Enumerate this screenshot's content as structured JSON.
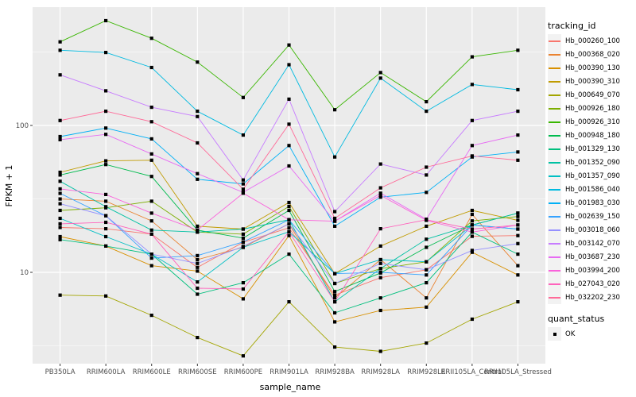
{
  "figure": {
    "xlabel": "sample_name",
    "ylabel": "FPKM + 1"
  },
  "legend": {
    "tracking_title": "tracking_id",
    "quant_title": "quant_status",
    "quant_items": [
      {
        "label": "OK"
      }
    ]
  },
  "colors": {
    "panel_bg": "#EBEBEB",
    "grid_major": "#FFFFFF",
    "grid_minor": "#FFFFFF",
    "tick_mark": "#333333",
    "tick_label": "#4D4D4D",
    "axis_title": "#000000",
    "legend_key_bg": "#F2F2F2",
    "point": "#000000"
  },
  "chart_data": {
    "type": "line",
    "title": "",
    "xlabel": "sample_name",
    "ylabel": "FPKM + 1",
    "yscale": "log10",
    "yticks": [
      10,
      100
    ],
    "ytick_labels": [
      "10",
      "100"
    ],
    "yminor": [
      3.162,
      31.62,
      316.2
    ],
    "ylim": [
      2.4,
      650
    ],
    "grid": true,
    "legend_position": "right",
    "legend_title": "tracking_id",
    "point_shape": "black square (quant_status = OK at every point)",
    "categories": [
      "PB350LA",
      "RRIM600LA",
      "RRIM600LE",
      "RRIM600SE",
      "RRIM600PE",
      "RRIM901LA",
      "RRIM928BA",
      "RRIM928LA",
      "RRIM928LE",
      "RRII105LA_Control",
      "RRII105LA_Stressed"
    ],
    "series": [
      {
        "name": "Hb_000260_100",
        "color": "#F8766D",
        "values": [
          20.2,
          19.8,
          18.2,
          10.8,
          16.0,
          20.1,
          7.0,
          9.2,
          10.4,
          17.6,
          17.8
        ]
      },
      {
        "name": "Hb_000368_020",
        "color": "#EA8331",
        "values": [
          31.6,
          30.5,
          22.4,
          12.2,
          14.8,
          21.4,
          6.7,
          12.2,
          6.7,
          24.8,
          11.1
        ]
      },
      {
        "name": "Hb_000390_130",
        "color": "#D89000",
        "values": [
          17.5,
          15.1,
          11.1,
          10.2,
          6.6,
          17.8,
          4.6,
          5.5,
          5.8,
          13.7,
          9.6
        ]
      },
      {
        "name": "Hb_000390_310",
        "color": "#C09B00",
        "values": [
          48,
          57.4,
          58,
          20.6,
          19.7,
          29.9,
          9.8,
          15.1,
          20.6,
          26.4,
          22.6
        ]
      },
      {
        "name": "Hb_000649_070",
        "color": "#A3A500",
        "values": [
          7.0,
          6.9,
          5.1,
          3.6,
          2.7,
          6.3,
          3.1,
          2.9,
          3.3,
          4.8,
          6.3
        ]
      },
      {
        "name": "Hb_000926_180",
        "color": "#7CAE00",
        "values": [
          26.4,
          27.5,
          30.5,
          18.8,
          18.2,
          28.1,
          8.4,
          10.6,
          11.8,
          22.4,
          24.0
        ]
      },
      {
        "name": "Hb_000926_310",
        "color": "#39B600",
        "values": [
          371,
          517,
          392,
          270,
          155,
          353,
          128,
          229,
          145,
          293,
          325
        ]
      },
      {
        "name": "Hb_000948_180",
        "color": "#00BB4E",
        "values": [
          46,
          54.2,
          45,
          19.4,
          17.1,
          26.4,
          7.4,
          9.9,
          14.8,
          21.0,
          25.3
        ]
      },
      {
        "name": "Hb_001329_130",
        "color": "#00BF7D",
        "values": [
          16.7,
          15.1,
          13.3,
          7.1,
          8.5,
          13.3,
          5.3,
          6.7,
          8.5,
          18.8,
          13.3
        ]
      },
      {
        "name": "Hb_001352_090",
        "color": "#00C1A3",
        "values": [
          41.7,
          28.0,
          19.4,
          18.8,
          19.7,
          22.8,
          6.3,
          10.6,
          16.8,
          21.0,
          25.3
        ]
      },
      {
        "name": "Hb_001357_090",
        "color": "#00BFC4",
        "values": [
          23.3,
          17.5,
          13.3,
          8.6,
          14.8,
          18.9,
          9.8,
          12.2,
          11.8,
          21.0,
          19.7
        ]
      },
      {
        "name": "Hb_001586_040",
        "color": "#00BAE0",
        "values": [
          325,
          314,
          248,
          125,
          86,
          259,
          61,
          210,
          125,
          190,
          175
        ]
      },
      {
        "name": "Hb_001983_030",
        "color": "#00B0F6",
        "values": [
          84,
          96,
          81,
          43,
          40,
          73,
          20.6,
          32.5,
          35,
          61,
          66
        ]
      },
      {
        "name": "Hb_002639_150",
        "color": "#35A2FF",
        "values": [
          34.5,
          24.3,
          12.5,
          13.0,
          16.1,
          22.8,
          9.8,
          10.0,
          9.6,
          21.0,
          19.7
        ]
      },
      {
        "name": "Hb_003018_060",
        "color": "#9590FF",
        "values": [
          29.3,
          24.3,
          13.3,
          11.5,
          15.0,
          21.4,
          8.4,
          11.5,
          10.4,
          14.1,
          15.7
        ]
      },
      {
        "name": "Hb_003142_070",
        "color": "#C77CFF",
        "values": [
          221,
          172,
          133,
          115,
          42.5,
          151,
          25.9,
          54.6,
          46,
          108,
          125
        ]
      },
      {
        "name": "Hb_003687_230",
        "color": "#E76BF3",
        "values": [
          80,
          87,
          64,
          47,
          35,
          53,
          22.3,
          34.6,
          23,
          73,
          86
        ]
      },
      {
        "name": "Hb_003994_200",
        "color": "#FA62DB",
        "values": [
          37,
          33.9,
          25.3,
          19.4,
          34.6,
          22.8,
          22.3,
          33.4,
          22.6,
          18.8,
          21.0
        ]
      },
      {
        "name": "Hb_027043_020",
        "color": "#FF62BC",
        "values": [
          21.4,
          21.9,
          18.2,
          7.8,
          7.7,
          18.9,
          6.3,
          19.8,
          22.8,
          19.7,
          21.0
        ]
      },
      {
        "name": "Hb_032202_230",
        "color": "#FF6A98",
        "values": [
          108,
          125,
          106,
          76,
          36.8,
          102,
          23.3,
          37.6,
          52,
          62,
          58
        ]
      }
    ]
  }
}
